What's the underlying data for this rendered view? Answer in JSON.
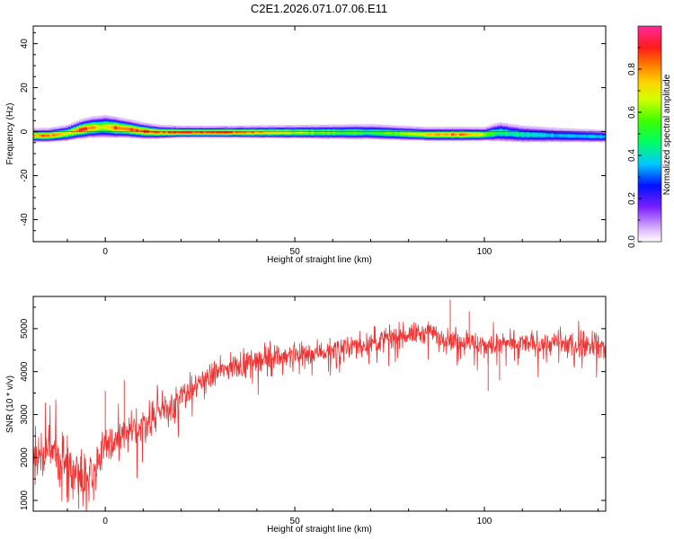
{
  "figure": {
    "title": "C2E1.2026.071.07.06.E11"
  },
  "chart_data": [
    {
      "type": "heatmap",
      "title": "",
      "xlabel": "Height of straight line (km)",
      "ylabel": "Frequency (Hz)",
      "xlim": [
        -19,
        132
      ],
      "ylim": [
        -50,
        48
      ],
      "xticks": [
        "0",
        "50",
        "100"
      ],
      "xtick_values": [
        0,
        50,
        100
      ],
      "yticks": [
        "-40",
        "-20",
        "0",
        "20",
        "40"
      ],
      "ytick_values": [
        -40,
        -20,
        0,
        20,
        40
      ],
      "colorbar": {
        "label": "Normalized spectral amplitude",
        "ticks": [
          "0.0",
          "0.2",
          "0.4",
          "0.6",
          "0.8"
        ],
        "tick_values": [
          0.0,
          0.2,
          0.4,
          0.6,
          0.8
        ],
        "range": [
          0.0,
          1.0
        ]
      },
      "ridge": {
        "x": [
          -19,
          -15,
          -10,
          -7,
          -4,
          0,
          3,
          6,
          10,
          14,
          20,
          30,
          50,
          70,
          85,
          95,
          100,
          104,
          110,
          120,
          132
        ],
        "center_hz": [
          -1.5,
          -1.5,
          -0.5,
          1,
          2,
          2.5,
          2,
          1.5,
          0.5,
          0,
          0,
          0,
          0,
          0,
          -1,
          -1,
          -1,
          0,
          -1,
          -1.5,
          -2
        ],
        "amplitude": [
          0.85,
          0.9,
          0.75,
          0.95,
          0.9,
          0.7,
          0.95,
          0.9,
          0.95,
          0.9,
          1.0,
          1.0,
          0.7,
          0.55,
          0.8,
          0.95,
          0.7,
          0.5,
          0.45,
          0.4,
          0.4
        ],
        "width_hz": [
          2,
          2,
          2.5,
          3,
          3.5,
          4,
          3.5,
          3,
          2.5,
          2,
          1.5,
          1.5,
          2,
          2.5,
          2,
          2,
          2,
          3.5,
          3,
          2.5,
          2
        ]
      }
    },
    {
      "type": "line",
      "title": "",
      "xlabel": "Height of straight line (km)",
      "ylabel": "SNR (10 * v/v)",
      "xlim": [
        -19,
        132
      ],
      "ylim": [
        750,
        5750
      ],
      "xticks": [
        "0",
        "50",
        "100"
      ],
      "xtick_values": [
        0,
        50,
        100
      ],
      "yticks": [
        "1000",
        "2000",
        "3000",
        "4000",
        "5000"
      ],
      "ytick_values": [
        1000,
        2000,
        3000,
        4000,
        5000
      ],
      "series": [
        {
          "name": "SNR",
          "color": "#ee3333",
          "trend": {
            "x": [
              -19,
              -15,
              -10,
              -6,
              -3,
              0,
              5,
              10,
              15,
              20,
              25,
              30,
              35,
              40,
              50,
              60,
              70,
              78,
              85,
              90,
              95,
              100,
              110,
              120,
              132
            ],
            "y": [
              2000,
              2150,
              1900,
              1600,
              1700,
              2250,
              2500,
              2800,
              3100,
              3400,
              3750,
              4000,
              4150,
              4300,
              4400,
              4500,
              4650,
              4850,
              4900,
              4800,
              4700,
              4600,
              4650,
              4650,
              4600
            ]
          },
          "noise_amplitude": {
            "x": [
              -19,
              -5,
              10,
              30,
              60,
              100,
              132
            ],
            "y": [
              550,
              500,
              400,
              250,
              220,
              230,
              230
            ]
          },
          "notable_points": {
            "x": [
              -10,
              -7,
              -6,
              0,
              5,
              91,
              96,
              101,
              104
            ],
            "y": [
              950,
              800,
              1200,
              3550,
              3800,
              5680,
              5400,
              3550,
              3800
            ]
          },
          "sample_count": 1500
        }
      ]
    }
  ]
}
